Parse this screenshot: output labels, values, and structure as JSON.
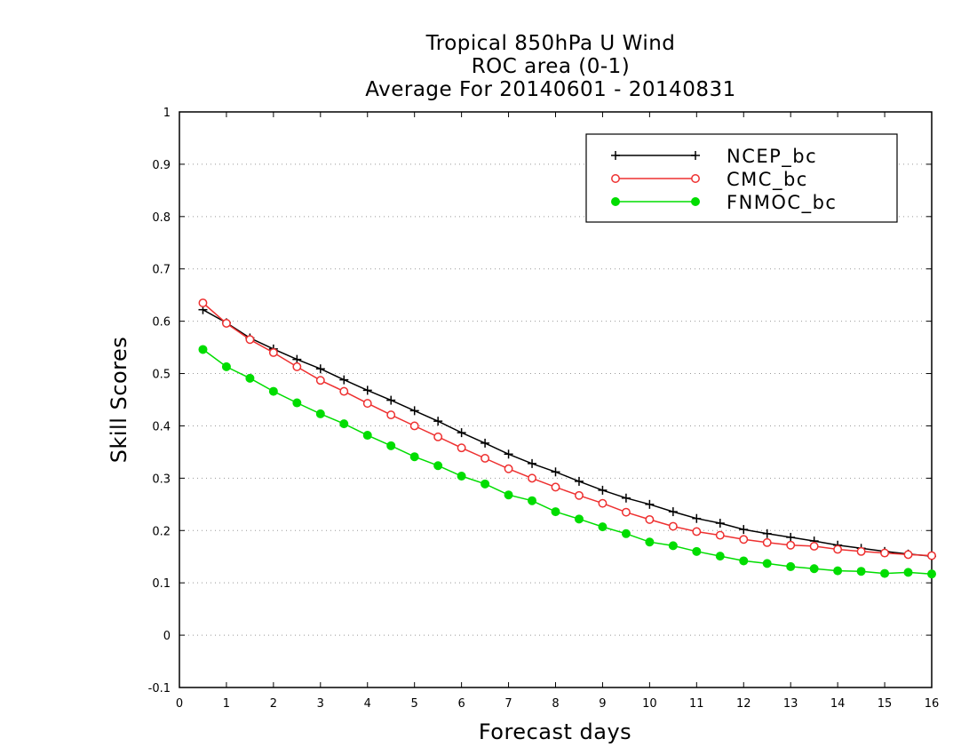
{
  "chart_data": {
    "type": "line",
    "title": [
      "Tropical 850hPa U Wind",
      "ROC area (0-1)",
      "Average For 20140601 - 20140831"
    ],
    "xlabel": "Forecast days",
    "ylabel": "Skill Scores",
    "xlim": [
      0,
      16
    ],
    "ylim": [
      -0.1,
      1
    ],
    "xticks": [
      "0",
      "1",
      "2",
      "3",
      "4",
      "5",
      "6",
      "7",
      "8",
      "9",
      "10",
      "11",
      "12",
      "13",
      "14",
      "15",
      "16"
    ],
    "yticks": [
      "-0.1",
      "0",
      "0.1",
      "0.2",
      "0.3",
      "0.4",
      "0.5",
      "0.6",
      "0.7",
      "0.8",
      "0.9",
      "1"
    ],
    "grid": "horizontal dotted",
    "legend": "top-right",
    "x": [
      0.5,
      1,
      1.5,
      2,
      2.5,
      3,
      3.5,
      4,
      4.5,
      5,
      5.5,
      6,
      6.5,
      7,
      7.5,
      8,
      8.5,
      9,
      9.5,
      10,
      10.5,
      11,
      11.5,
      12,
      12.5,
      13,
      13.5,
      14,
      14.5,
      15,
      15.5,
      16
    ],
    "series": [
      {
        "name": "NCEP_bc",
        "color": "#000000",
        "marker": "plus",
        "values": [
          0.622,
          0.597,
          0.568,
          0.547,
          0.527,
          0.509,
          0.488,
          0.468,
          0.449,
          0.429,
          0.409,
          0.387,
          0.367,
          0.346,
          0.328,
          0.312,
          0.294,
          0.277,
          0.262,
          0.25,
          0.236,
          0.223,
          0.214,
          0.202,
          0.194,
          0.187,
          0.18,
          0.172,
          0.166,
          0.16,
          0.155,
          0.151
        ]
      },
      {
        "name": "CMC_bc",
        "color": "#ee3030",
        "marker": "open-circle",
        "values": [
          0.635,
          0.596,
          0.565,
          0.54,
          0.513,
          0.487,
          0.466,
          0.443,
          0.421,
          0.4,
          0.379,
          0.358,
          0.338,
          0.318,
          0.3,
          0.283,
          0.267,
          0.252,
          0.235,
          0.221,
          0.208,
          0.198,
          0.191,
          0.183,
          0.177,
          0.172,
          0.17,
          0.164,
          0.16,
          0.157,
          0.154,
          0.152
        ]
      },
      {
        "name": "FNMOC_bc",
        "color": "#00dd00",
        "marker": "filled-circle",
        "values": [
          0.546,
          0.513,
          0.491,
          0.466,
          0.444,
          0.423,
          0.404,
          0.382,
          0.362,
          0.341,
          0.324,
          0.304,
          0.289,
          0.268,
          0.257,
          0.236,
          0.222,
          0.207,
          0.194,
          0.178,
          0.171,
          0.16,
          0.151,
          0.142,
          0.137,
          0.131,
          0.127,
          0.123,
          0.122,
          0.118,
          0.12,
          0.117
        ]
      }
    ]
  }
}
